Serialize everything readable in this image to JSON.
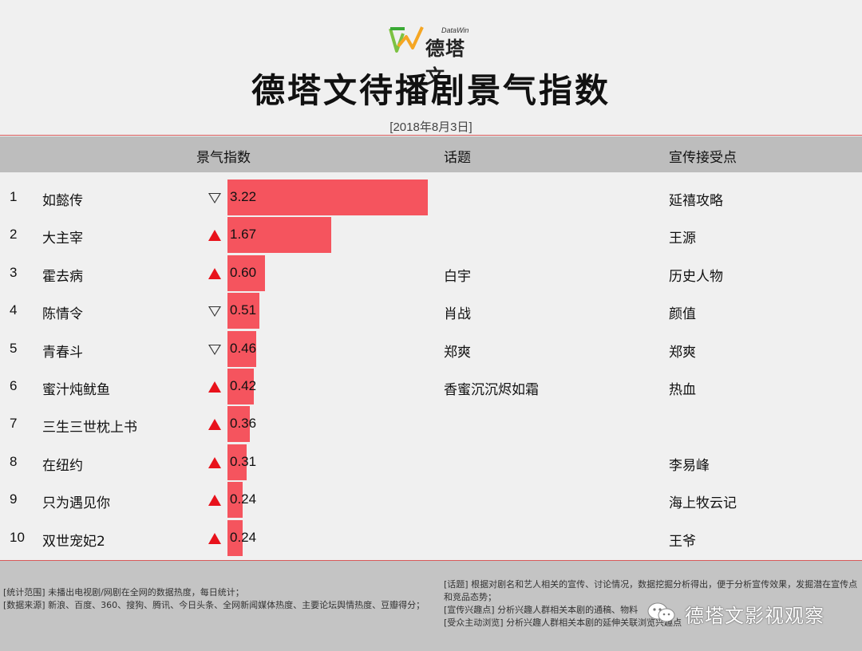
{
  "brand": {
    "name": "德塔文",
    "sub": "DataWin"
  },
  "title": "德塔文待播剧景气指数",
  "date": "[2018年8月3日]",
  "columns": {
    "index": "景气指数",
    "topic": "话题",
    "promo": "宣传接受点"
  },
  "colors": {
    "bar": "#f5545e",
    "up": "#e8121b",
    "down": "#333333",
    "header_bg": "#bdbdbd",
    "footer_bg": "#c4c4c4",
    "rule": "#d85a5a"
  },
  "chart_data": {
    "type": "bar",
    "orientation": "horizontal",
    "series_name": "景气指数",
    "rows": [
      {
        "rank": "1",
        "name": "如懿传",
        "trend": "down",
        "value": 3.22,
        "label": "3.22",
        "topic": "",
        "promo": "延禧攻略"
      },
      {
        "rank": "2",
        "name": "大主宰",
        "trend": "up",
        "value": 1.67,
        "label": "1.67",
        "topic": "",
        "promo": "王源"
      },
      {
        "rank": "3",
        "name": "霍去病",
        "trend": "up",
        "value": 0.6,
        "label": "0.60",
        "topic": "白宇",
        "promo": "历史人物"
      },
      {
        "rank": "4",
        "name": "陈情令",
        "trend": "down",
        "value": 0.51,
        "label": "0.51",
        "topic": "肖战",
        "promo": "颜值"
      },
      {
        "rank": "5",
        "name": "青春斗",
        "trend": "down",
        "value": 0.46,
        "label": "0.46",
        "topic": "郑爽",
        "promo": "郑爽"
      },
      {
        "rank": "6",
        "name": "蜜汁炖鱿鱼",
        "trend": "up",
        "value": 0.42,
        "label": "0.42",
        "topic": "香蜜沉沉烬如霜",
        "promo": "热血"
      },
      {
        "rank": "7",
        "name": "三生三世枕上书",
        "trend": "up",
        "value": 0.36,
        "label": "0.36",
        "topic": "",
        "promo": ""
      },
      {
        "rank": "8",
        "name": "在纽约",
        "trend": "up",
        "value": 0.31,
        "label": "0.31",
        "topic": "",
        "promo": "李易峰"
      },
      {
        "rank": "9",
        "name": "只为遇见你",
        "trend": "up",
        "value": 0.24,
        "label": "0.24",
        "topic": "",
        "promo": "海上牧云记"
      },
      {
        "rank": "10",
        "name": "双世宠妃2",
        "trend": "up",
        "value": 0.24,
        "label": "0.24",
        "topic": "",
        "promo": "王爷"
      }
    ]
  },
  "footer": {
    "left": [
      "[统计范围]  未播出电视剧/网剧在全网的数据热度，每日统计；",
      "[数据来源]  新浪、百度、360、搜狗、腾讯、今日头条、全网新闻媒体热度、主要论坛舆情热度、豆瓣得分；"
    ],
    "right": [
      "[话题]  根据对剧名和艺人相关的宣传、讨论情况，数据挖掘分析得出，便于分析宣传效果，发掘潜在宣传点和竞品态势；",
      "[宣传兴趣点]  分析兴趣人群相关本剧的通稿、物料",
      "[受众主动浏览]  分析兴趣人群相关本剧的延伸关联浏览兴趣点"
    ],
    "watermark": "德塔文影视观察"
  }
}
